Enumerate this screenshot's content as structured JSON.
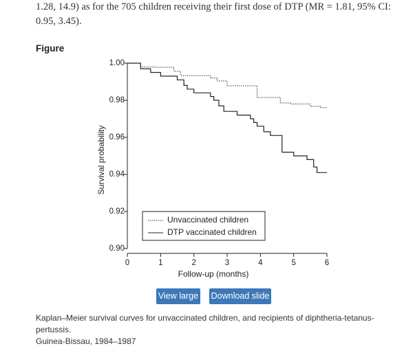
{
  "paragraph": "1.28, 14.9) as for the 705 children receiving their first dose of DTP (MR = 1.81, 95% CI: 0.95, 3.45).",
  "figure_heading": "Figure",
  "chart_data": {
    "type": "step",
    "xlabel": "Follow-up (months)",
    "ylabel": "Survival probability",
    "xlim": [
      0,
      6
    ],
    "ylim": [
      0.9,
      1.0
    ],
    "xticks": [
      0,
      1,
      2,
      3,
      4,
      5,
      6
    ],
    "yticks": [
      {
        "value": 0.9,
        "label": "0.90"
      },
      {
        "value": 0.92,
        "label": "0.92"
      },
      {
        "value": 0.94,
        "label": "0.94"
      },
      {
        "value": 0.96,
        "label": "0.96"
      },
      {
        "value": 0.98,
        "label": "0.98"
      },
      {
        "value": 1.0,
        "label": "1.00"
      }
    ],
    "legend": "lower left",
    "series": [
      {
        "name": "Unvaccinated children",
        "style": "dotted",
        "color": "#333333",
        "x": [
          0,
          0.4,
          0.8,
          1.4,
          1.6,
          2.5,
          2.7,
          3.0,
          3.9,
          4.6,
          4.9,
          5.5,
          5.8,
          6.0
        ],
        "values": [
          1.0,
          0.998,
          0.9978,
          0.9956,
          0.9933,
          0.992,
          0.9904,
          0.9878,
          0.9815,
          0.9785,
          0.978,
          0.9767,
          0.976,
          0.976
        ]
      },
      {
        "name": "DTP vaccinated children",
        "style": "solid",
        "color": "#222222",
        "x": [
          0,
          0.4,
          0.7,
          1.0,
          1.5,
          1.7,
          1.8,
          2.0,
          2.5,
          2.6,
          2.75,
          2.9,
          3.3,
          3.7,
          3.8,
          3.9,
          4.1,
          4.3,
          4.65,
          5.0,
          5.4,
          5.6,
          5.7,
          6.0
        ],
        "values": [
          1.0,
          0.997,
          0.995,
          0.993,
          0.991,
          0.988,
          0.986,
          0.984,
          0.982,
          0.98,
          0.977,
          0.974,
          0.972,
          0.97,
          0.968,
          0.966,
          0.963,
          0.961,
          0.952,
          0.95,
          0.948,
          0.944,
          0.941,
          0.941
        ]
      }
    ]
  },
  "buttons": [
    "View large",
    "Download slide"
  ],
  "caption": [
    "Kaplan–Meier survival curves for unvaccinated children, and recipients of diphtheria-tetanus-pertussis.",
    "Guinea-Bissau, 1984–1987"
  ]
}
